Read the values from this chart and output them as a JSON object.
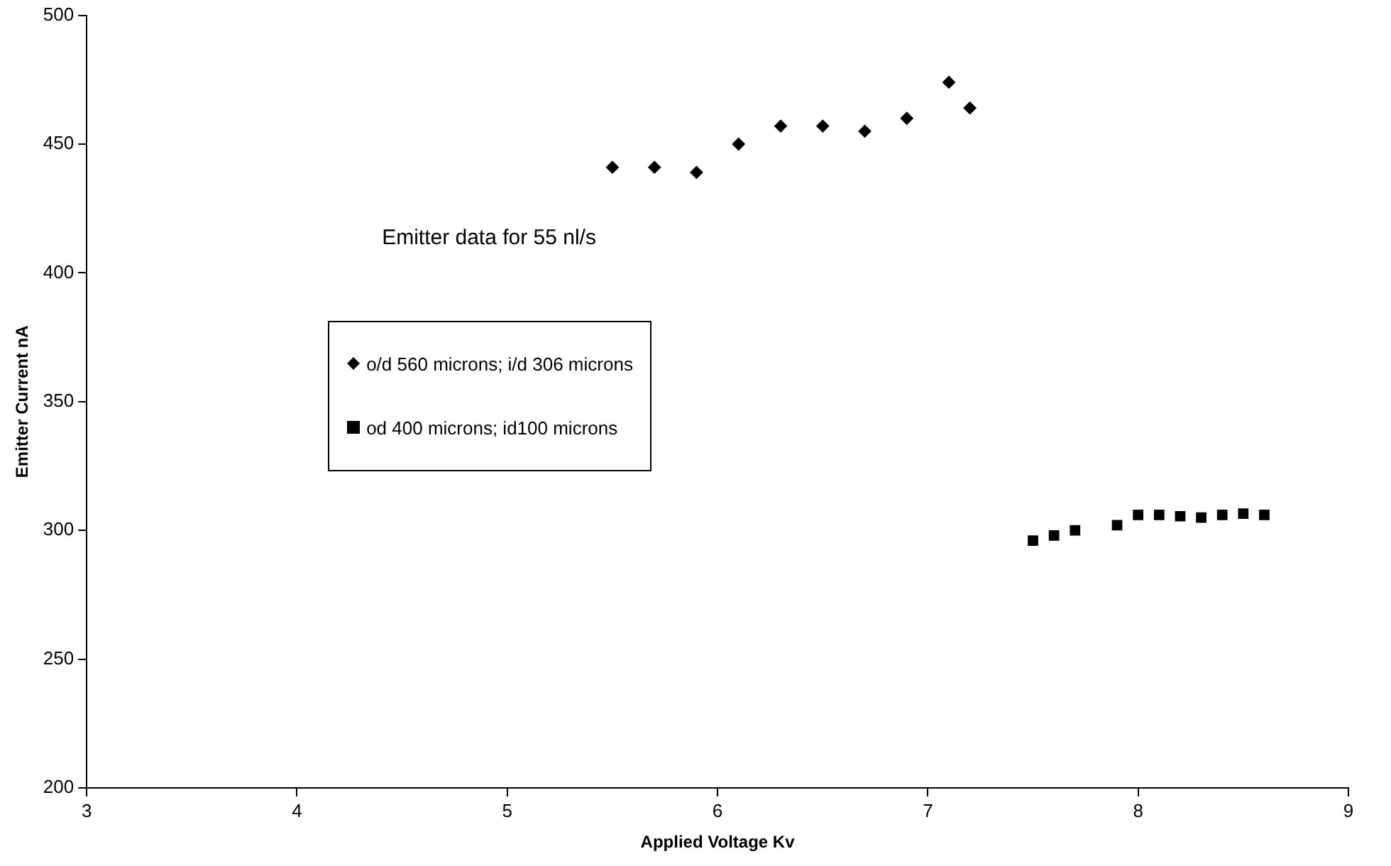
{
  "chart_data": {
    "type": "scatter",
    "xlabel": "Applied Voltage Kv",
    "ylabel": "Emitter Current nA",
    "legend_title": "Emitter data for 55 nl/s",
    "legend": "center left",
    "grid": false,
    "xlim": [
      3,
      9
    ],
    "xticks": [
      3,
      4,
      5,
      6,
      7,
      8,
      9
    ],
    "ylim": [
      200,
      500
    ],
    "yticks": [
      200,
      250,
      300,
      350,
      400,
      450,
      500
    ],
    "series": [
      {
        "name": "o/d 560 microns; i/d 306 microns",
        "color": "#000000",
        "marker": "diamond",
        "x": [
          5.5,
          5.7,
          5.9,
          6.1,
          6.3,
          6.5,
          6.7,
          6.9,
          7.1,
          7.2
        ],
        "values": [
          441,
          441,
          439,
          450,
          457,
          457,
          455,
          460,
          474,
          464
        ]
      },
      {
        "name": "od 400 microns; id100 microns",
        "color": "#000000",
        "marker": "square",
        "x": [
          7.5,
          7.6,
          7.7,
          7.9,
          8.0,
          8.1,
          8.2,
          8.3,
          8.4,
          8.5,
          8.6
        ],
        "values": [
          296,
          298,
          300,
          302,
          306,
          306,
          305.5,
          305,
          306,
          306.5,
          306
        ]
      }
    ]
  }
}
